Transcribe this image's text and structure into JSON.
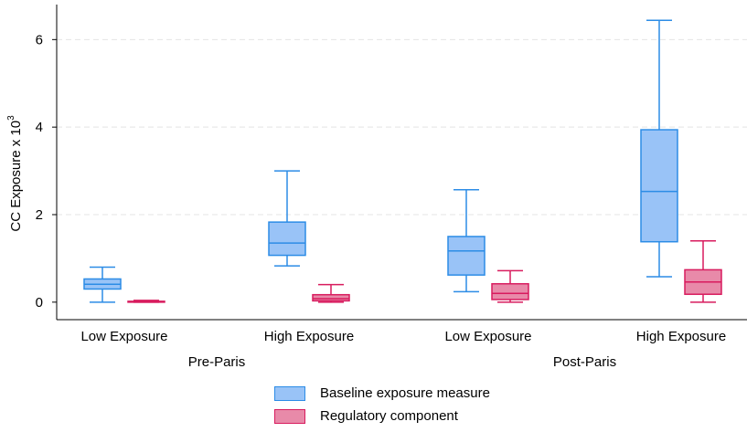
{
  "chart_data": {
    "type": "box",
    "ylabel": "CC Exposure x 10",
    "ylabel_superscript": "3",
    "ylim": [
      -0.4,
      6.8
    ],
    "yticks": [
      0,
      2,
      4,
      6
    ],
    "grid": true,
    "legend_position": "bottom",
    "categories": [
      "Low Exposure",
      "High Exposure",
      "Low Exposure",
      "High Exposure"
    ],
    "groups": [
      "Pre-Paris",
      "Post-Paris"
    ],
    "series": [
      {
        "name": "Baseline exposure measure",
        "fill": "#99c3f7",
        "stroke": "#2c8ce6",
        "boxes": [
          {
            "min": 0.0,
            "q1": 0.3,
            "median": 0.41,
            "q3": 0.53,
            "max": 0.8
          },
          {
            "min": 0.83,
            "q1": 1.07,
            "median": 1.35,
            "q3": 1.83,
            "max": 3.0
          },
          {
            "min": 0.24,
            "q1": 0.62,
            "median": 1.17,
            "q3": 1.5,
            "max": 2.57
          },
          {
            "min": 0.58,
            "q1": 1.38,
            "median": 2.53,
            "q3": 3.94,
            "max": 6.44
          }
        ]
      },
      {
        "name": "Regulatory component",
        "fill": "#e88aa9",
        "stroke": "#d81b5e",
        "boxes": [
          {
            "min": 0.0,
            "q1": 0.0,
            "median": 0.01,
            "q3": 0.02,
            "max": 0.04
          },
          {
            "min": 0.0,
            "q1": 0.03,
            "median": 0.08,
            "q3": 0.17,
            "max": 0.4
          },
          {
            "min": 0.0,
            "q1": 0.06,
            "median": 0.2,
            "q3": 0.42,
            "max": 0.72
          },
          {
            "min": 0.0,
            "q1": 0.18,
            "median": 0.46,
            "q3": 0.74,
            "max": 1.4
          }
        ]
      }
    ]
  }
}
